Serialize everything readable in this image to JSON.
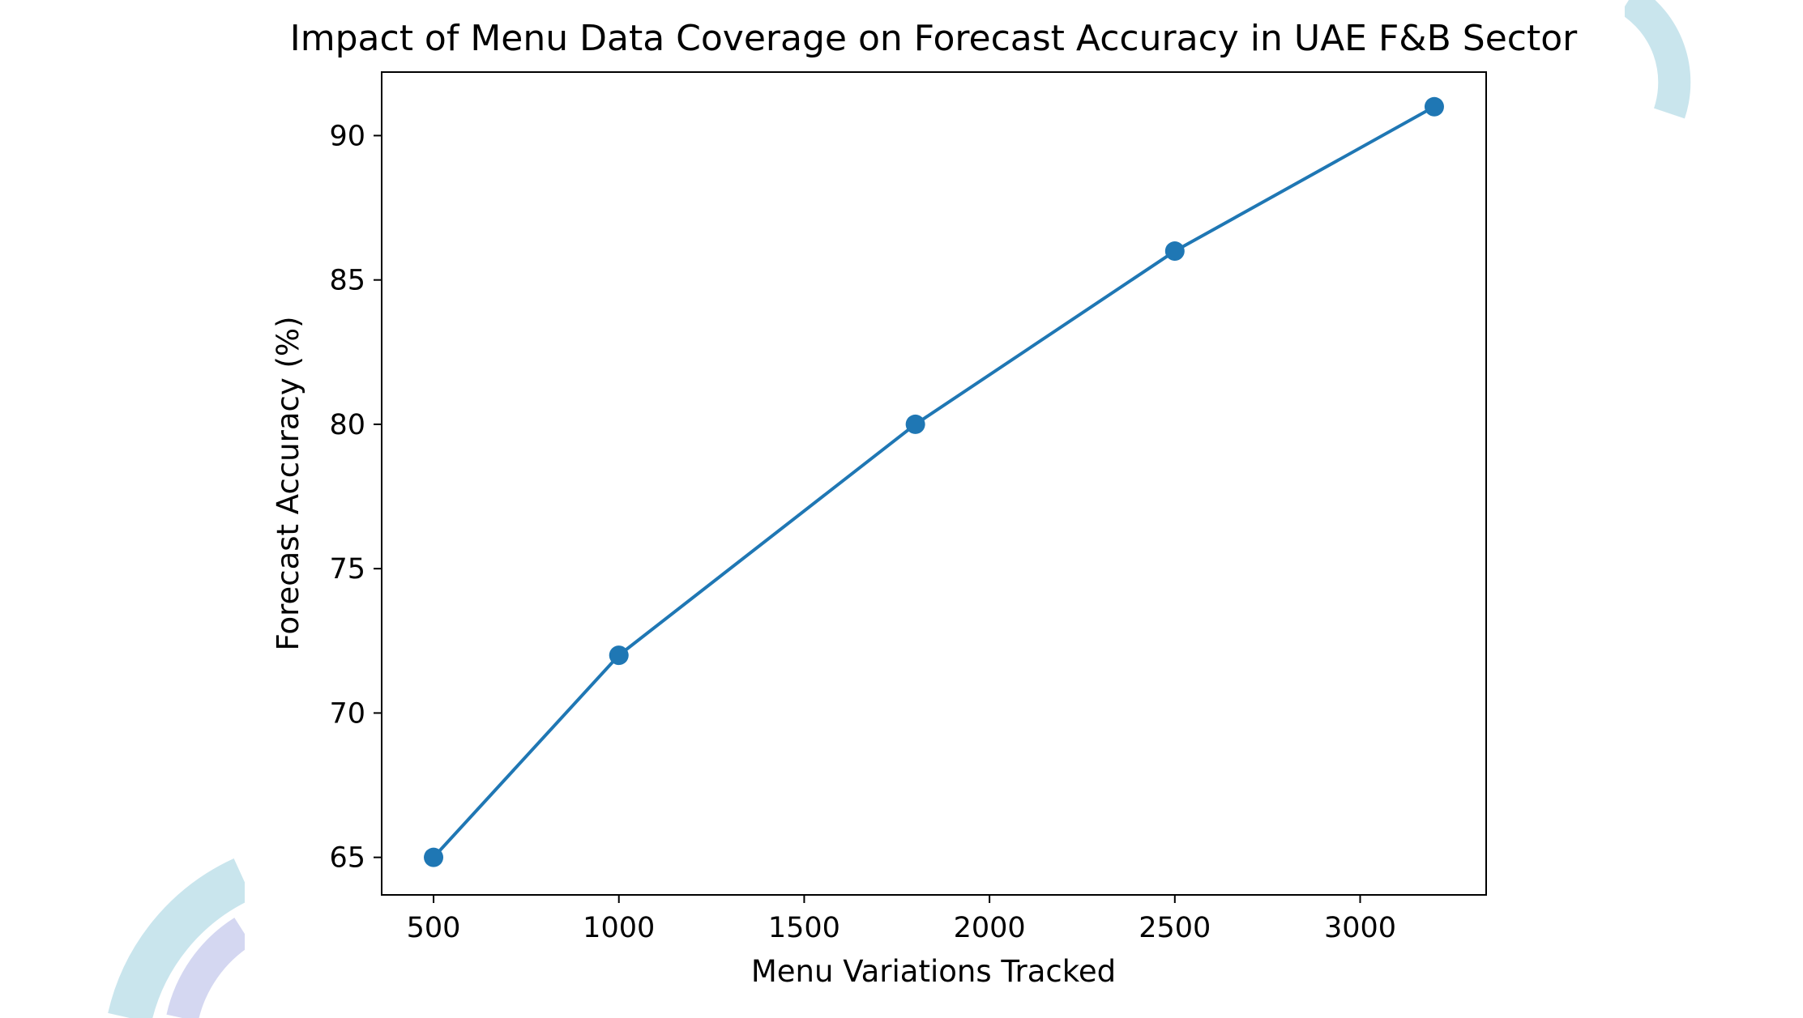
{
  "colors": {
    "series": "#1f77b4",
    "axis": "#000000",
    "background": "#ffffff",
    "decor_light": "#bfe0ea",
    "decor_violet": "#cdd0ef"
  },
  "chart_data": {
    "type": "line",
    "title": "Impact of Menu Data Coverage on Forecast Accuracy in UAE F&B Sector",
    "xlabel": "Menu Variations Tracked",
    "ylabel": "Forecast Accuracy (%)",
    "x": [
      500,
      1000,
      1800,
      2500,
      3200
    ],
    "series": [
      {
        "values": [
          65,
          72,
          80,
          86,
          91
        ],
        "marker": "circle"
      }
    ],
    "xlim": [
      360,
      3340
    ],
    "ylim": [
      63.7,
      92.2
    ],
    "xticks": [
      500,
      1000,
      1500,
      2000,
      2500,
      3000
    ],
    "yticks": [
      65,
      70,
      75,
      80,
      85,
      90
    ],
    "grid": false,
    "legend": "none"
  }
}
